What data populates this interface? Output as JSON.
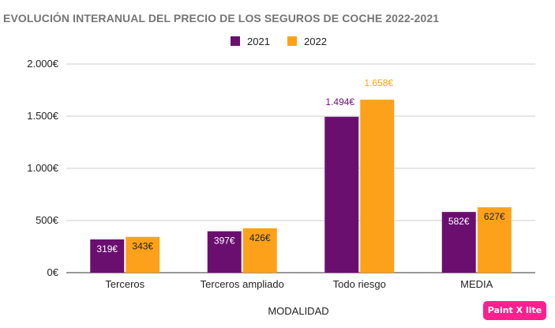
{
  "watermark": "Paint X lite",
  "chart_data": {
    "type": "bar",
    "title": "EVOLUCIÓN INTERANUAL DEL PRECIO DE LOS SEGUROS DE COCHE 2022-2021",
    "xlabel": "MODALIDAD",
    "ylabel": "",
    "categories": [
      "Terceros",
      "Terceros ampliado",
      "Todo riesgo",
      "MEDIA"
    ],
    "series": [
      {
        "name": "2021",
        "color": "#6a0f70",
        "values": [
          319,
          397,
          1494,
          582
        ],
        "labels": [
          "319€",
          "397€",
          "1.494€",
          "582€"
        ],
        "label_color": "#6a0f70"
      },
      {
        "name": "2022",
        "color": "#fea11a",
        "values": [
          343,
          426,
          1658,
          627
        ],
        "labels": [
          "343€",
          "426€",
          "1.658€",
          "627€"
        ],
        "label_color": "#fea11a"
      }
    ],
    "ylim": [
      0,
      2000
    ],
    "yticks": [
      0,
      500,
      1000,
      1500,
      2000
    ],
    "ytick_labels": [
      "0€",
      "500€",
      "1.000€",
      "1.500€",
      "2.000€"
    ],
    "grid": true,
    "legend_position": "top-center"
  }
}
